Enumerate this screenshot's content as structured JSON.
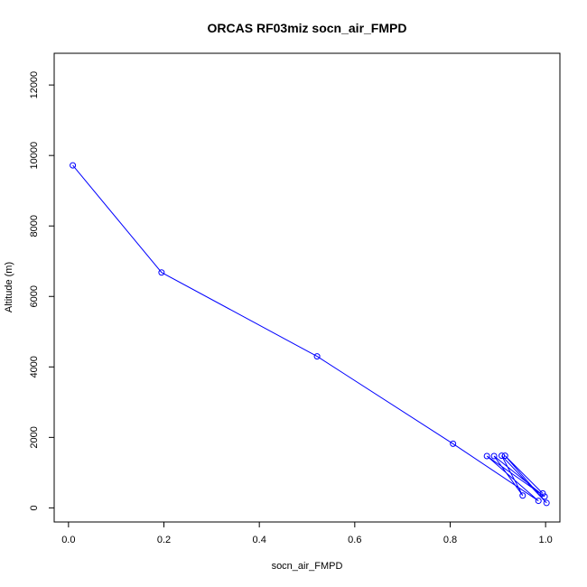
{
  "chart_data": {
    "type": "line",
    "title": "ORCAS RF03miz socn_air_FMPD",
    "xlabel": "socn_air_FMPD",
    "ylabel": "Altitude (m)",
    "xlim": [
      -0.03,
      1.03
    ],
    "ylim": [
      -400,
      12900
    ],
    "xticks": [
      0.0,
      0.2,
      0.4,
      0.6,
      0.8,
      1.0
    ],
    "xtick_labels": [
      "0.0",
      "0.2",
      "0.4",
      "0.6",
      "0.8",
      "1.0"
    ],
    "yticks": [
      0,
      2000,
      4000,
      6000,
      8000,
      10000,
      12000
    ],
    "ytick_labels": [
      "0",
      "2000",
      "4000",
      "6000",
      "8000",
      "10000",
      "12000"
    ],
    "grid": false,
    "series": [
      {
        "color": "#0000ff",
        "marker": "open-circle",
        "x": [
          0.009,
          0.195,
          0.521,
          0.806,
          0.985,
          0.877,
          0.998,
          0.892,
          0.952,
          0.908,
          1.002,
          0.915,
          0.994
        ],
        "y": [
          9720,
          6680,
          4300,
          1820,
          200,
          1470,
          320,
          1470,
          350,
          1480,
          140,
          1480,
          410
        ]
      }
    ]
  }
}
